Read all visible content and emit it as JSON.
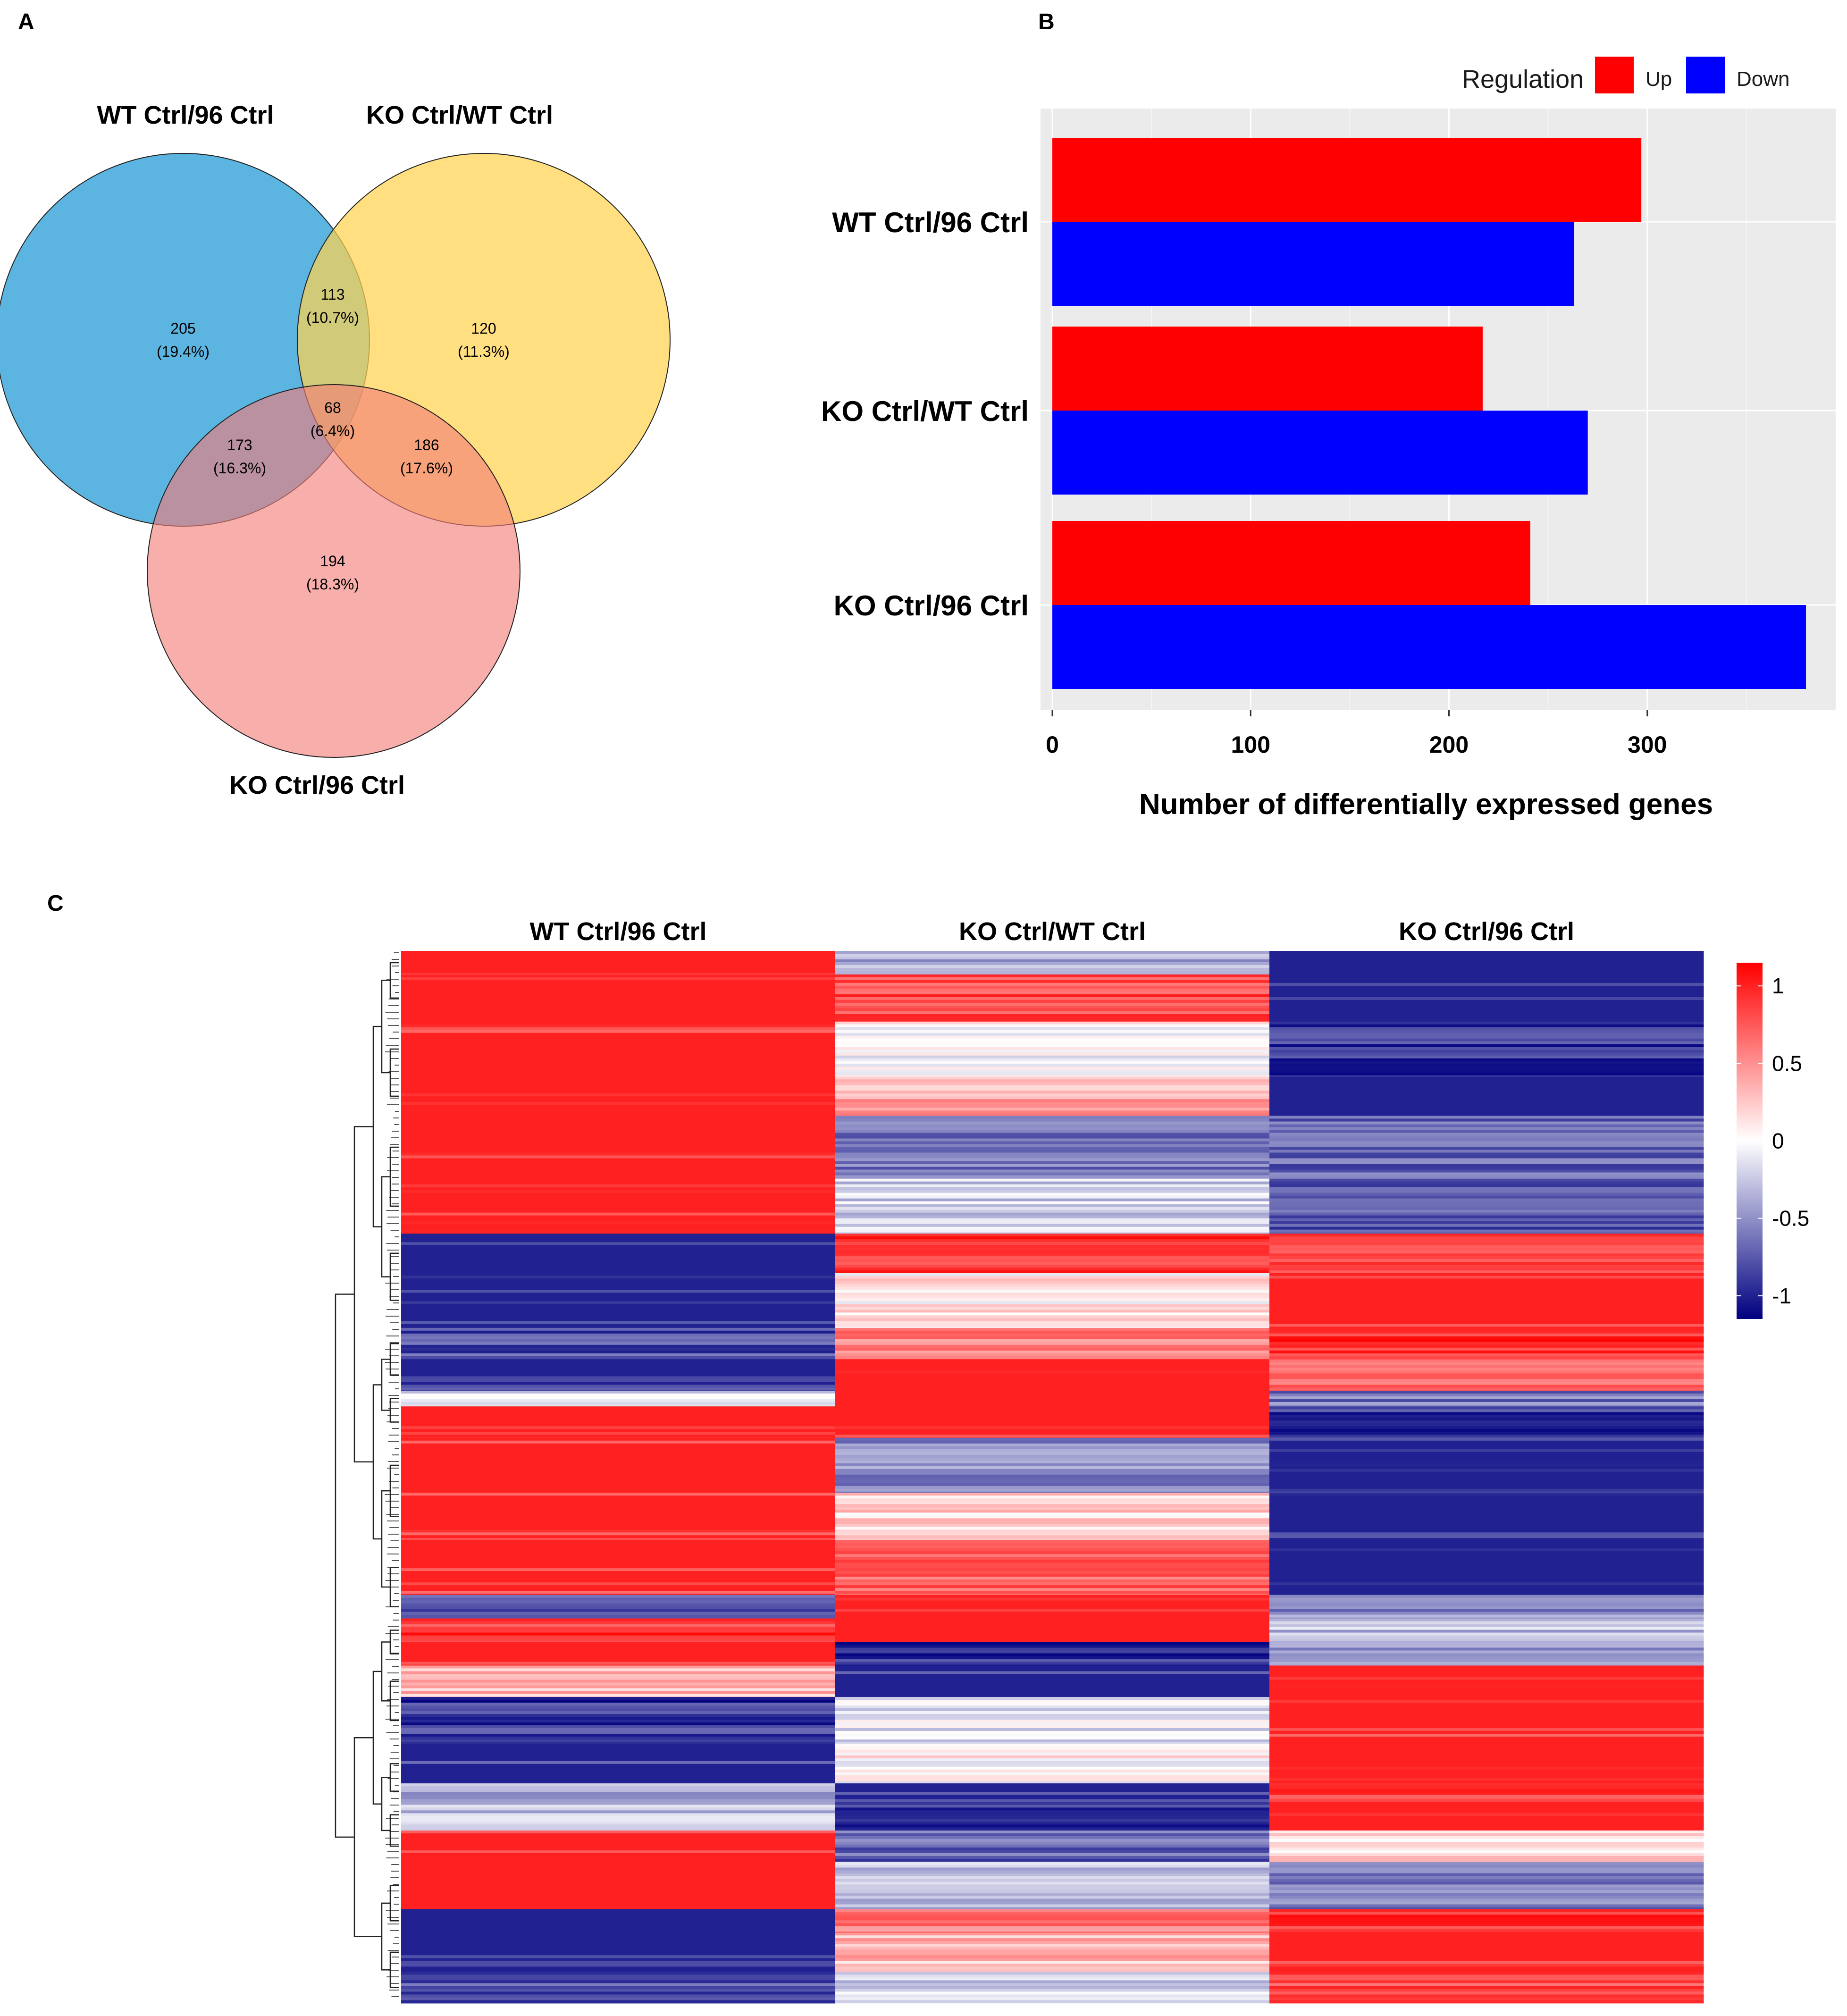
{
  "panels": {
    "a": "A",
    "b": "B",
    "c": "C"
  },
  "venn": {
    "sets": [
      {
        "name": "WT Ctrl/96 Ctrl",
        "color": "#2E9FD8"
      },
      {
        "name": "KO Ctrl/WT Ctrl",
        "color": "#FFD34F"
      },
      {
        "name": "KO Ctrl/96 Ctrl",
        "color": "#F47D77"
      }
    ],
    "regions": [
      {
        "id": "wt_only",
        "count": "205",
        "pct": "(19.4%)"
      },
      {
        "id": "wt_ko_wt",
        "count": "113",
        "pct": "(10.7%)"
      },
      {
        "id": "ko_wt_only",
        "count": "120",
        "pct": "(11.3%)"
      },
      {
        "id": "all_three",
        "count": "68",
        "pct": "(6.4%)"
      },
      {
        "id": "wt_ko96",
        "count": "173",
        "pct": "(16.3%)"
      },
      {
        "id": "kowt_ko96",
        "count": "186",
        "pct": "(17.6%)"
      },
      {
        "id": "ko96_only",
        "count": "194",
        "pct": "(18.3%)"
      }
    ]
  },
  "chart_data": [
    {
      "type": "bar",
      "orientation": "horizontal",
      "categories": [
        "WT Ctrl/96 Ctrl",
        "KO Ctrl/WT Ctrl",
        "KO Ctrl/96 Ctrl"
      ],
      "series": [
        {
          "name": "Up",
          "color": "#FF0000",
          "values": [
            297,
            217,
            241
          ]
        },
        {
          "name": "Down",
          "color": "#0000FF",
          "values": [
            263,
            270,
            380
          ]
        }
      ],
      "xlabel": "Number of differentially expressed genes",
      "ylabel": "",
      "xlim": [
        0,
        395
      ],
      "xticks": [
        "0",
        "100",
        "200",
        "300"
      ],
      "legend": {
        "title": "Regulation",
        "position": "top-right"
      },
      "grid": true,
      "background": "#EBEBEB"
    },
    {
      "type": "heatmap",
      "columns": [
        "WT Ctrl/96 Ctrl",
        "KO Ctrl/WT Ctrl",
        "KO Ctrl/96 Ctrl"
      ],
      "color_scale": {
        "low": "#000080",
        "mid": "#FFFFFF",
        "high": "#FF0000",
        "range": [
          -1.15,
          1.15
        ]
      },
      "scale_ticks": [
        "1",
        "0.5",
        "0",
        "-0.5",
        "-1"
      ],
      "row_clusters_dendrogram": true,
      "blocks": [
        {
          "rows": 1.5,
          "values": [
            1.0,
            -0.4,
            -1.0
          ]
        },
        {
          "rows": 3.0,
          "values": [
            1.0,
            0.8,
            -1.0
          ]
        },
        {
          "rows": 3.5,
          "values": [
            1.0,
            0.0,
            -0.9
          ]
        },
        {
          "rows": 2.5,
          "values": [
            1.0,
            0.4,
            -1.0
          ]
        },
        {
          "rows": 4.0,
          "values": [
            1.0,
            -0.6,
            -0.7
          ]
        },
        {
          "rows": 3.5,
          "values": [
            1.0,
            -0.2,
            -0.8
          ]
        },
        {
          "rows": 2.5,
          "values": [
            -1.0,
            0.9,
            0.9
          ]
        },
        {
          "rows": 3.5,
          "values": [
            -1.0,
            0.1,
            1.0
          ]
        },
        {
          "rows": 2.0,
          "values": [
            -0.8,
            0.6,
            0.9
          ]
        },
        {
          "rows": 2.0,
          "values": [
            -1.0,
            1.0,
            0.6
          ]
        },
        {
          "rows": 1.0,
          "values": [
            -0.2,
            1.0,
            -0.6
          ]
        },
        {
          "rows": 2.0,
          "values": [
            1.0,
            1.0,
            -0.9
          ]
        },
        {
          "rows": 3.5,
          "values": [
            1.0,
            -0.5,
            -1.0
          ]
        },
        {
          "rows": 3.0,
          "values": [
            1.0,
            0.2,
            -1.0
          ]
        },
        {
          "rows": 3.5,
          "values": [
            1.0,
            0.7,
            -1.0
          ]
        },
        {
          "rows": 1.5,
          "values": [
            -0.7,
            1.0,
            -0.5
          ]
        },
        {
          "rows": 1.5,
          "values": [
            0.9,
            1.0,
            -0.3
          ]
        },
        {
          "rows": 1.5,
          "values": [
            1.0,
            -0.9,
            -0.4
          ]
        },
        {
          "rows": 2.0,
          "values": [
            0.3,
            -1.0,
            1.0
          ]
        },
        {
          "rows": 3.0,
          "values": [
            -0.9,
            -0.1,
            1.0
          ]
        },
        {
          "rows": 2.5,
          "values": [
            -1.0,
            0.05,
            1.0
          ]
        },
        {
          "rows": 1.0,
          "values": [
            -0.4,
            -1.0,
            0.9
          ]
        },
        {
          "rows": 2.0,
          "values": [
            -0.3,
            -0.9,
            1.0
          ]
        },
        {
          "rows": 2.0,
          "values": [
            1.0,
            -0.7,
            0.2
          ]
        },
        {
          "rows": 3.0,
          "values": [
            1.0,
            -0.3,
            -0.6
          ]
        },
        {
          "rows": 1.5,
          "values": [
            -1.0,
            0.6,
            0.9
          ]
        },
        {
          "rows": 2.5,
          "values": [
            -1.0,
            0.3,
            1.0
          ]
        },
        {
          "rows": 2.0,
          "values": [
            -0.8,
            -0.2,
            0.8
          ]
        }
      ]
    }
  ]
}
